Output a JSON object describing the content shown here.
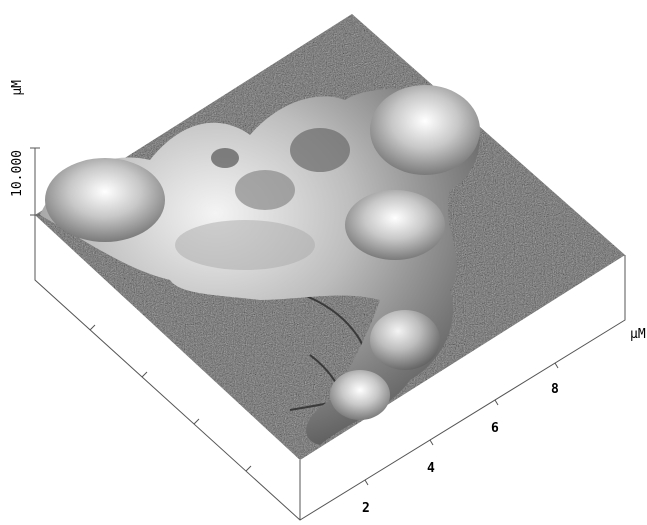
{
  "z_axis": {
    "label": "10.000",
    "unit": "μM"
  },
  "x_axis": {
    "unit": "μM",
    "ticks": [
      "2",
      "4",
      "6",
      "8"
    ]
  }
}
